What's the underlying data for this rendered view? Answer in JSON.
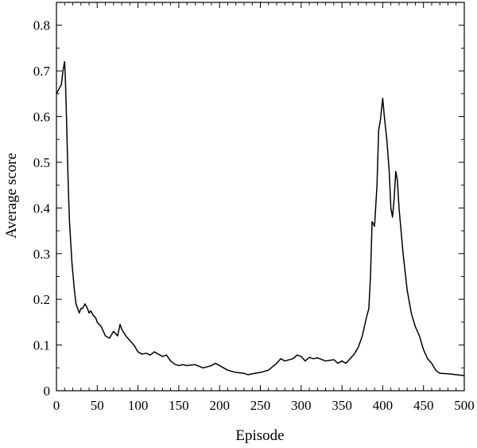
{
  "chart_data": {
    "type": "line",
    "title": "",
    "xlabel": "Episode",
    "ylabel": "Average score",
    "xlim": [
      0,
      500
    ],
    "ylim": [
      0,
      0.85
    ],
    "grid": false,
    "x_ticks": [
      0,
      50,
      100,
      150,
      200,
      250,
      300,
      350,
      400,
      450,
      500
    ],
    "x_tick_labels": [
      "0",
      "50",
      "100",
      "150",
      "200",
      "250",
      "300",
      "350",
      "400",
      "450",
      "500"
    ],
    "y_ticks": [
      0,
      0.1,
      0.2,
      0.3,
      0.4,
      0.5,
      0.6,
      0.7,
      0.8
    ],
    "y_tick_labels": [
      "0",
      "0.1",
      "0.2",
      "0.3",
      "0.4",
      "0.5",
      "0.6",
      "0.7",
      "0.8"
    ],
    "series": [
      {
        "color": "#000000",
        "x": [
          0,
          3,
          6,
          8,
          10,
          11,
          12,
          13,
          14,
          15,
          16,
          17,
          18,
          19,
          20,
          22,
          24,
          26,
          28,
          30,
          32,
          35,
          38,
          40,
          42,
          45,
          48,
          50,
          55,
          60,
          65,
          70,
          75,
          78,
          80,
          85,
          90,
          95,
          100,
          105,
          110,
          115,
          120,
          125,
          130,
          135,
          140,
          145,
          150,
          155,
          160,
          170,
          180,
          190,
          195,
          200,
          210,
          220,
          230,
          235,
          240,
          250,
          260,
          270,
          275,
          280,
          290,
          295,
          300,
          305,
          310,
          315,
          320,
          330,
          340,
          345,
          350,
          355,
          360,
          365,
          370,
          375,
          380,
          383,
          385,
          387,
          390,
          393,
          395,
          397,
          400,
          402,
          405,
          408,
          410,
          412,
          414,
          416,
          418,
          420,
          425,
          430,
          435,
          440,
          445,
          450,
          455,
          460,
          465,
          470,
          480,
          490,
          500
        ],
        "y": [
          0.65,
          0.66,
          0.67,
          0.7,
          0.72,
          0.68,
          0.62,
          0.55,
          0.48,
          0.42,
          0.37,
          0.34,
          0.31,
          0.28,
          0.26,
          0.22,
          0.19,
          0.18,
          0.17,
          0.18,
          0.18,
          0.19,
          0.18,
          0.17,
          0.175,
          0.165,
          0.16,
          0.15,
          0.14,
          0.12,
          0.115,
          0.13,
          0.12,
          0.145,
          0.135,
          0.12,
          0.11,
          0.1,
          0.085,
          0.08,
          0.082,
          0.078,
          0.085,
          0.08,
          0.075,
          0.078,
          0.065,
          0.058,
          0.055,
          0.057,
          0.055,
          0.057,
          0.05,
          0.055,
          0.06,
          0.055,
          0.045,
          0.04,
          0.038,
          0.035,
          0.037,
          0.04,
          0.045,
          0.06,
          0.07,
          0.065,
          0.07,
          0.078,
          0.075,
          0.065,
          0.073,
          0.07,
          0.072,
          0.065,
          0.068,
          0.06,
          0.065,
          0.06,
          0.07,
          0.08,
          0.095,
          0.12,
          0.16,
          0.18,
          0.25,
          0.37,
          0.36,
          0.45,
          0.57,
          0.59,
          0.64,
          0.6,
          0.55,
          0.48,
          0.4,
          0.38,
          0.42,
          0.48,
          0.46,
          0.4,
          0.3,
          0.22,
          0.17,
          0.14,
          0.12,
          0.09,
          0.07,
          0.06,
          0.045,
          0.038,
          0.037,
          0.035,
          0.033
        ]
      }
    ]
  }
}
